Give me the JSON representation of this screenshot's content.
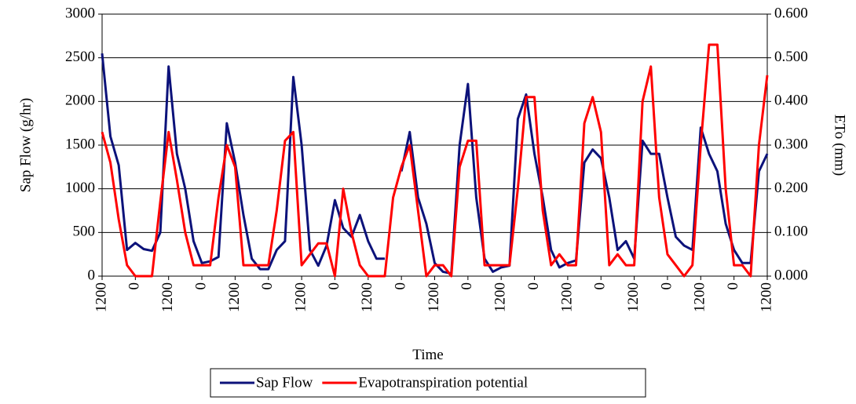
{
  "chart_data": {
    "type": "line",
    "xlabel": "Time",
    "ylabel": "Sap Flow (g/hr)",
    "y2label": "ETo (mm)",
    "x": [
      0,
      3,
      6,
      9,
      12,
      15,
      18,
      21,
      24,
      27,
      30,
      33,
      36,
      39,
      42,
      45,
      48,
      51,
      54,
      57,
      60,
      63,
      66,
      69,
      72,
      75,
      78,
      81,
      84,
      87,
      90,
      93,
      96,
      99,
      102,
      105,
      108,
      111,
      114,
      117,
      120,
      123,
      126,
      129,
      132,
      135,
      138,
      141,
      144,
      147,
      150,
      153,
      156,
      159,
      162,
      165,
      168,
      171,
      174,
      177,
      180,
      183,
      186,
      189,
      192,
      195,
      198,
      201,
      204,
      207,
      210,
      213,
      216,
      219,
      222,
      225,
      228,
      231,
      234,
      237,
      240
    ],
    "series": [
      {
        "name": "Sap Flow",
        "color": "#0c127a",
        "axis": "y",
        "values": [
          2550,
          1600,
          1270,
          300,
          380,
          310,
          290,
          500,
          2400,
          1400,
          1000,
          400,
          150,
          170,
          220,
          1750,
          1300,
          700,
          200,
          80,
          80,
          300,
          400,
          2280,
          1500,
          300,
          120,
          350,
          870,
          550,
          450,
          700,
          400,
          200,
          200,
          null,
          1200,
          1650,
          900,
          600,
          150,
          50,
          30,
          1500,
          2200,
          900,
          200,
          50,
          100,
          120,
          1800,
          2080,
          1400,
          900,
          300,
          100,
          150,
          180,
          1300,
          1450,
          1350,
          900,
          300,
          400,
          200,
          1550,
          1400,
          1400,
          900,
          450,
          350,
          300,
          1700,
          1400,
          1200,
          600,
          300,
          150,
          150,
          1200,
          1400
        ]
      },
      {
        "name": "Evapotranspiration potential",
        "color": "#ff0000",
        "axis": "y2",
        "values": [
          0.33,
          0.26,
          0.13,
          0.025,
          0,
          0,
          0,
          0.17,
          0.33,
          0.22,
          0.1,
          0.025,
          0.025,
          0.025,
          0.18,
          0.3,
          0.25,
          0.025,
          0.025,
          0.025,
          0.025,
          0.15,
          0.31,
          0.33,
          0.025,
          0.05,
          0.075,
          0.075,
          0,
          0.2,
          0.1,
          0.025,
          0,
          0,
          0,
          0.18,
          0.25,
          0.3,
          0.15,
          0,
          0.025,
          0.025,
          0,
          0.25,
          0.31,
          0.31,
          0.025,
          0.025,
          0.025,
          0.025,
          0.2,
          0.41,
          0.41,
          0.15,
          0.025,
          0.05,
          0.025,
          0.025,
          0.35,
          0.41,
          0.33,
          0.025,
          0.05,
          0.025,
          0.025,
          0.4,
          0.48,
          0.18,
          0.05,
          0.025,
          0,
          0.025,
          0.3,
          0.53,
          0.53,
          0.2,
          0.025,
          0.025,
          0,
          0.3,
          0.46
        ]
      }
    ],
    "xlim": [
      0,
      240
    ],
    "xticks": [
      {
        "value": 0,
        "label": "1200"
      },
      {
        "value": 12,
        "label": "0"
      },
      {
        "value": 24,
        "label": "1200"
      },
      {
        "value": 36,
        "label": "0"
      },
      {
        "value": 48,
        "label": "1200"
      },
      {
        "value": 60,
        "label": "0"
      },
      {
        "value": 72,
        "label": "1200"
      },
      {
        "value": 84,
        "label": "0"
      },
      {
        "value": 96,
        "label": "1200"
      },
      {
        "value": 108,
        "label": "0"
      },
      {
        "value": 120,
        "label": "1200"
      },
      {
        "value": 132,
        "label": "0"
      },
      {
        "value": 144,
        "label": "1200"
      },
      {
        "value": 156,
        "label": "0"
      },
      {
        "value": 168,
        "label": "1200"
      },
      {
        "value": 180,
        "label": "0"
      },
      {
        "value": 192,
        "label": "1200"
      },
      {
        "value": 204,
        "label": "0"
      },
      {
        "value": 216,
        "label": "1200"
      },
      {
        "value": 228,
        "label": "0"
      },
      {
        "value": 240,
        "label": "1200"
      }
    ],
    "ylim": [
      0,
      3000
    ],
    "yticks": [
      0,
      500,
      1000,
      1500,
      2000,
      2500,
      3000
    ],
    "y2lim": [
      0,
      0.6
    ],
    "y2ticks": [
      {
        "value": 0,
        "label": "0.000"
      },
      {
        "value": 0.1,
        "label": "0.100"
      },
      {
        "value": 0.2,
        "label": "0.200"
      },
      {
        "value": 0.3,
        "label": "0.300"
      },
      {
        "value": 0.4,
        "label": "0.400"
      },
      {
        "value": 0.5,
        "label": "0.500"
      },
      {
        "value": 0.6,
        "label": "0.600"
      }
    ],
    "grid": true,
    "legend": "bottom"
  }
}
